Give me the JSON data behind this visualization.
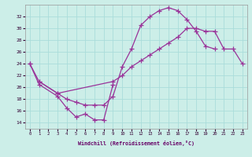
{
  "xlabel": "Windchill (Refroidissement éolien,°C)",
  "bg_color": "#cceee8",
  "grid_color": "#aaddda",
  "line_color": "#993399",
  "xlim": [
    -0.5,
    23.5
  ],
  "ylim": [
    13,
    34
  ],
  "xticks": [
    0,
    1,
    2,
    3,
    4,
    5,
    6,
    7,
    8,
    9,
    10,
    11,
    12,
    13,
    14,
    15,
    16,
    17,
    18,
    19,
    20,
    21,
    22,
    23
  ],
  "yticks": [
    14,
    16,
    18,
    20,
    22,
    24,
    26,
    28,
    30,
    32
  ],
  "line1_x": [
    0,
    1,
    3,
    4,
    5,
    6,
    7,
    8,
    9,
    10,
    11,
    12,
    13,
    14,
    15,
    16,
    17,
    18,
    19,
    20
  ],
  "line1_y": [
    24,
    21,
    19,
    18,
    17.5,
    17,
    17,
    17,
    18.5,
    23.5,
    26.5,
    30.5,
    32,
    33,
    33.5,
    33,
    31.5,
    29.5,
    27,
    26.5
  ],
  "line2_x": [
    0,
    1,
    3,
    4,
    5,
    6,
    7,
    8,
    9
  ],
  "line2_y": [
    24,
    20.5,
    18.5,
    16.5,
    15.0,
    15.5,
    14.5,
    14.5,
    20.5
  ],
  "line3_x": [
    1,
    3,
    9,
    10,
    11,
    12,
    13,
    14,
    15,
    16,
    17,
    18,
    19,
    20,
    21,
    22,
    23
  ],
  "line3_y": [
    21,
    19,
    21,
    22,
    23.5,
    24.5,
    25.5,
    26.5,
    27.5,
    28.5,
    30,
    30,
    29.5,
    29.5,
    26.5,
    26.5,
    24
  ]
}
